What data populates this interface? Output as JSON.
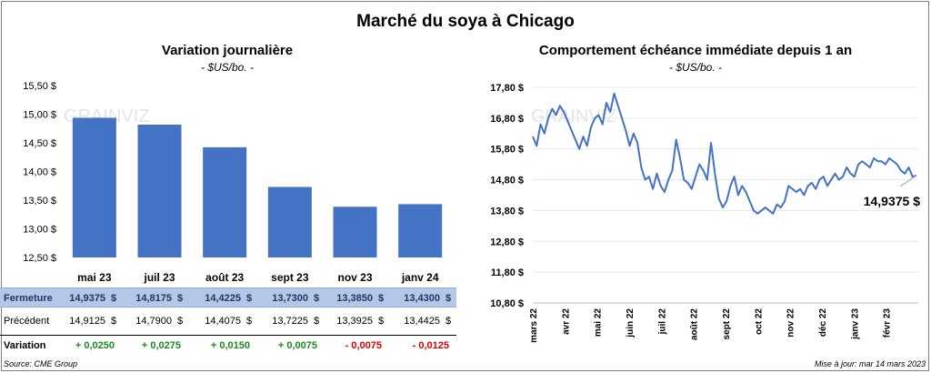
{
  "title": "Marché du soya à Chicago",
  "footer": {
    "source": "Source: CME Group",
    "updated": "Mise à jour: mar 14 mars 2023"
  },
  "watermark": "GRAINVIZ",
  "colors": {
    "bar": "#4472c4",
    "line": "#4472c4",
    "table_header_bg": "#b4c7e7",
    "positive": "#1e8a1e",
    "negative": "#e00000"
  },
  "chart_data": [
    {
      "type": "bar",
      "title": "Variation journalière",
      "subtitle": "- $US/bo. -",
      "categories": [
        "mai 23",
        "juil 23",
        "août 23",
        "sept 23",
        "nov 23",
        "janv 24"
      ],
      "values": [
        14.9375,
        14.8175,
        14.4225,
        13.73,
        13.385,
        13.43
      ],
      "ylim": [
        12.5,
        15.5
      ],
      "yticks": [
        "12,50 $",
        "13,00 $",
        "13,50 $",
        "14,00 $",
        "14,50 $",
        "15,00 $",
        "15,50 $"
      ],
      "grid": false
    },
    {
      "type": "line",
      "title": "Comportement échéance immédiate depuis 1 an",
      "subtitle": "- $US/bo. -",
      "xlabels": [
        "mars 22",
        "avr 22",
        "mai 22",
        "juin 22",
        "juil 22",
        "août 22",
        "sept 22",
        "oct 22",
        "nov 22",
        "déc 22",
        "janv 23",
        "févr 23"
      ],
      "yticks": [
        "10,80 $",
        "11,80 $",
        "12,80 $",
        "13,80 $",
        "14,80 $",
        "15,80 $",
        "16,80 $",
        "17,80 $"
      ],
      "ylim": [
        10.8,
        17.8
      ],
      "series": [
        {
          "values": [
            16.2,
            15.9,
            16.6,
            16.3,
            16.8,
            17.1,
            16.9,
            17.2,
            17.0,
            16.7,
            16.4,
            16.1,
            15.8,
            16.2,
            15.9,
            16.5,
            16.8,
            16.9,
            16.6,
            17.3,
            17.0,
            17.6,
            17.2,
            16.8,
            16.4,
            15.9,
            16.3,
            16.0,
            15.2,
            14.8,
            14.9,
            14.5,
            15.0,
            14.6,
            14.4,
            14.8,
            15.1,
            16.1,
            15.5,
            14.8,
            14.7,
            14.5,
            14.9,
            15.3,
            15.1,
            14.8,
            16.0,
            15.0,
            14.2,
            13.9,
            14.1,
            14.6,
            14.9,
            14.3,
            14.6,
            14.4,
            14.1,
            13.8,
            13.7,
            13.8,
            13.9,
            13.8,
            13.7,
            14.0,
            13.9,
            14.1,
            14.6,
            14.5,
            14.4,
            14.5,
            14.3,
            14.6,
            14.7,
            14.5,
            14.8,
            14.9,
            14.6,
            14.8,
            15.0,
            14.8,
            14.9,
            15.2,
            15.0,
            14.9,
            15.3,
            15.4,
            15.3,
            15.2,
            15.5,
            15.4,
            15.4,
            15.3,
            15.5,
            15.4,
            15.3,
            15.1,
            15.0,
            15.2,
            14.9,
            14.9375
          ]
        }
      ],
      "last_value_label": "14,9375 $"
    }
  ],
  "table": {
    "rows": [
      {
        "label": "Fermeture",
        "cells": [
          "14,9375",
          "14,8175",
          "14,4225",
          "13,7300",
          "13,3850",
          "13,4300"
        ],
        "suffix": "$"
      },
      {
        "label": "Précédent",
        "cells": [
          "14,9125",
          "14,7900",
          "14,4075",
          "13,7225",
          "13,3925",
          "13,4425"
        ],
        "suffix": "$"
      },
      {
        "label": "Variation",
        "cells": [
          "+ 0,0250",
          "+ 0,0275",
          "+ 0,0150",
          "+ 0,0075",
          "- 0,0075",
          "- 0,0125"
        ]
      }
    ]
  }
}
